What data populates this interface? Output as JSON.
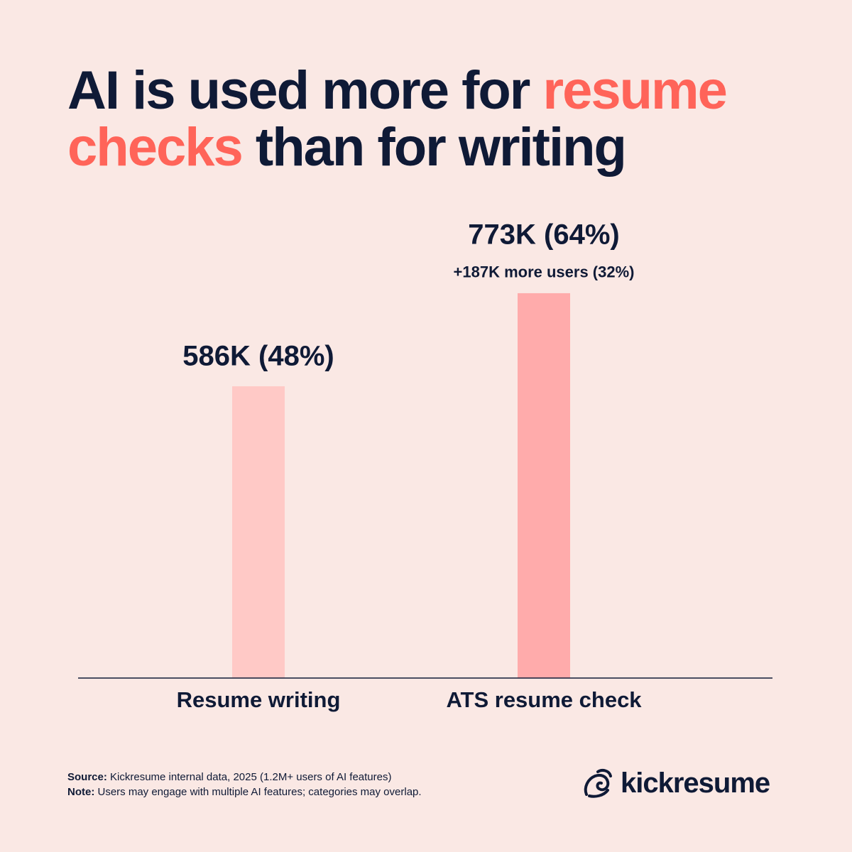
{
  "chart_data": {
    "type": "bar",
    "title_parts": [
      "AI is used more for",
      "resume checks",
      "than for writing"
    ],
    "title_highlight_color": "#ff6459",
    "categories": [
      "Resume writing",
      "ATS resume check"
    ],
    "values": [
      586,
      773
    ],
    "value_labels": [
      "586K (48%)",
      "773K (64%)"
    ],
    "colors": [
      "#ffc9c6",
      "#ffabab"
    ],
    "annotations": [
      {
        "text": "+187K more users (32%)",
        "x": "ATS resume check"
      }
    ],
    "ylim": [
      0,
      800
    ]
  },
  "footer": {
    "source_label": "Source:",
    "source_text": "Kickresume internal data, 2025 (1.2M+ users of AI features)",
    "note_label": "Note:",
    "note_text": "Users may engage with multiple AI features; categories may overlap.",
    "brand": "kickresume"
  }
}
